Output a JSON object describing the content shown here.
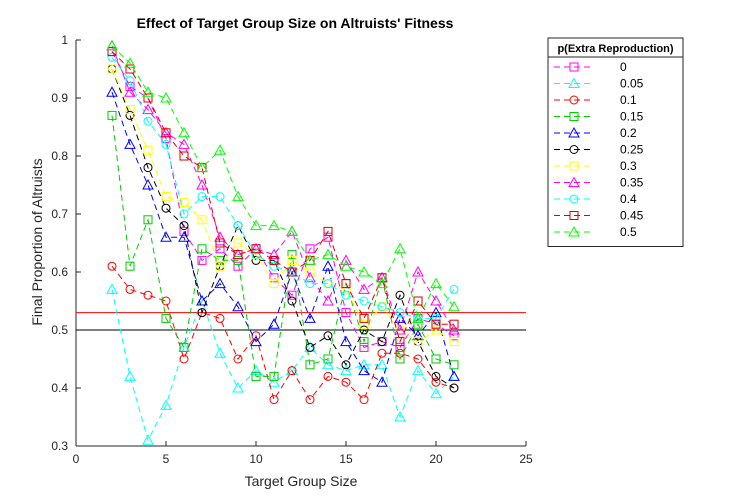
{
  "chart_data": {
    "type": "line",
    "title": "Effect of Target Group Size on Altruists' Fitness",
    "xlabel": "Target Group Size",
    "ylabel": "Final Proportion of Altruists",
    "xlim": [
      0,
      25
    ],
    "ylim": [
      0.3,
      1
    ],
    "xticks": [
      "0",
      "5",
      "10",
      "15",
      "20",
      "25"
    ],
    "yticks": [
      "0.3",
      "0.4",
      "0.5",
      "0.6",
      "0.7",
      "0.8",
      "0.9",
      "1"
    ],
    "legend_title": "p(Extra Reproduction)",
    "legend_position": "outside-right",
    "x": [
      2,
      3,
      4,
      5,
      6,
      7,
      8,
      9,
      10,
      11,
      12,
      13,
      14,
      15,
      16,
      17,
      18,
      19,
      20,
      21
    ],
    "series": [
      {
        "name": "0",
        "color": "#ff00ff",
        "marker": "square",
        "values": [
          0.98,
          0.92,
          0.9,
          0.83,
          0.67,
          0.62,
          0.64,
          0.61,
          0.64,
          0.59,
          0.56,
          0.64,
          0.66,
          0.53,
          0.47,
          0.48,
          0.47,
          0.52,
          0.51,
          0.49
        ]
      },
      {
        "name": "0.05",
        "color": "#00ffff",
        "marker": "triangle",
        "values": [
          0.57,
          0.42,
          0.31,
          0.37,
          0.47,
          0.55,
          0.46,
          0.4,
          0.43,
          0.41,
          0.43,
          0.47,
          0.44,
          0.43,
          0.44,
          0.44,
          0.35,
          0.43,
          0.39,
          0.42
        ]
      },
      {
        "name": "0.1",
        "color": "#ff0000",
        "marker": "circle",
        "values": [
          0.61,
          0.57,
          0.56,
          0.55,
          0.45,
          0.53,
          0.52,
          0.45,
          0.49,
          0.38,
          0.43,
          0.38,
          0.42,
          0.41,
          0.38,
          0.46,
          0.46,
          0.45,
          0.41,
          0.4
        ]
      },
      {
        "name": "0.15",
        "color": "#00cc00",
        "marker": "square",
        "values": [
          0.87,
          0.61,
          0.69,
          0.52,
          0.47,
          0.64,
          0.62,
          0.62,
          0.42,
          0.42,
          0.63,
          0.44,
          0.45,
          0.58,
          0.48,
          0.59,
          0.45,
          0.51,
          0.45,
          0.44
        ]
      },
      {
        "name": "0.2",
        "color": "#0000ff",
        "marker": "triangle",
        "values": [
          0.91,
          0.82,
          0.75,
          0.66,
          0.66,
          0.55,
          0.58,
          0.54,
          0.48,
          0.51,
          0.6,
          0.52,
          0.61,
          0.48,
          0.43,
          0.41,
          0.52,
          0.49,
          0.53,
          0.42
        ]
      },
      {
        "name": "0.25",
        "color": "#000000",
        "marker": "circle",
        "values": [
          0.95,
          0.87,
          0.78,
          0.71,
          0.68,
          0.53,
          0.61,
          0.68,
          0.62,
          0.62,
          0.55,
          0.47,
          0.49,
          0.44,
          0.5,
          0.48,
          0.56,
          0.48,
          0.42,
          0.4
        ]
      },
      {
        "name": "0.3",
        "color": "#ffff00",
        "marker": "square",
        "values": [
          0.95,
          0.88,
          0.81,
          0.73,
          0.72,
          0.69,
          0.61,
          0.65,
          0.63,
          0.58,
          0.62,
          0.6,
          0.58,
          0.57,
          0.51,
          0.54,
          0.5,
          0.48,
          0.5,
          0.48
        ]
      },
      {
        "name": "0.35",
        "color": "#ff00ff",
        "marker": "triangle",
        "values": [
          0.99,
          0.91,
          0.88,
          0.84,
          0.82,
          0.75,
          0.66,
          0.63,
          0.64,
          0.63,
          0.67,
          0.59,
          0.55,
          0.62,
          0.57,
          0.59,
          0.5,
          0.6,
          0.55,
          0.5
        ]
      },
      {
        "name": "0.4",
        "color": "#00ffff",
        "marker": "circle",
        "values": [
          0.97,
          0.93,
          0.86,
          0.82,
          0.7,
          0.73,
          0.73,
          0.68,
          0.63,
          0.61,
          0.6,
          0.58,
          0.58,
          0.56,
          0.55,
          0.54,
          0.53,
          0.52,
          0.52,
          0.57
        ]
      },
      {
        "name": "0.45",
        "color": "#dd0000",
        "marker": "square",
        "values": [
          0.98,
          0.95,
          0.9,
          0.84,
          0.8,
          0.78,
          0.65,
          0.63,
          0.64,
          0.62,
          0.6,
          0.62,
          0.67,
          0.58,
          0.52,
          0.59,
          0.48,
          0.55,
          0.51,
          0.51
        ]
      },
      {
        "name": "0.5",
        "color": "#00ff00",
        "marker": "triangle",
        "values": [
          0.99,
          0.96,
          0.91,
          0.9,
          0.84,
          0.78,
          0.81,
          0.73,
          0.68,
          0.68,
          0.67,
          0.62,
          0.63,
          0.61,
          0.6,
          0.58,
          0.64,
          0.52,
          0.58,
          0.54
        ]
      }
    ],
    "reference_lines": [
      {
        "y": 0.53,
        "color": "#ff0000"
      },
      {
        "y": 0.5,
        "color": "#000000"
      }
    ]
  }
}
